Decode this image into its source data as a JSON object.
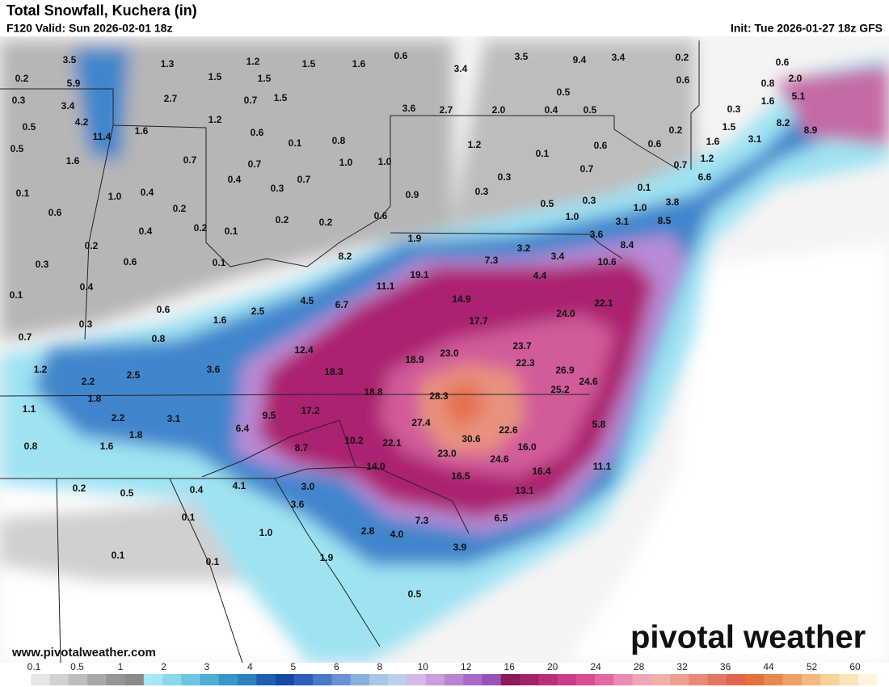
{
  "header": {
    "title": "Total Snowfall, Kuchera (in)",
    "valid": "F120 Valid: Sun 2026-02-01 18z",
    "init": "Init: Tue 2026-01-27 18z GFS"
  },
  "map_labels": [
    "3.5",
    "1.3",
    "1.2",
    "1.5",
    "1.6",
    "0.6",
    "3.5",
    "9.4",
    "3.4",
    "0.2",
    "0.6",
    "0.2",
    "5.9",
    "1.5",
    "1.5",
    "3.4",
    "0.6",
    "0.8",
    "2.0",
    "0.3",
    "3.4",
    "2.7",
    "0.7",
    "1.5",
    "3.6",
    "2.7",
    "2.0",
    "0.4",
    "0.5",
    "0.5",
    "0.3",
    "1.6",
    "5.1",
    "0.5",
    "4.2",
    "11.4",
    "1.6",
    "1.2",
    "0.6",
    "0.1",
    "0.8",
    "1.5",
    "8.2",
    "8.9",
    "0.2",
    "0.5",
    "1.6",
    "0.7",
    "0.4",
    "0.7",
    "1.0",
    "1.0",
    "1.2",
    "0.1",
    "0.6",
    "0.6",
    "1.6",
    "3.1",
    "0.1",
    "1.0",
    "0.4",
    "0.3",
    "0.7",
    "0.3",
    "0.7",
    "1.2",
    "6.6",
    "0.7",
    "0.6",
    "0.2",
    "0.9",
    "0.3",
    "0.5",
    "0.3",
    "0.1",
    "3.8",
    "1.0",
    "0.4",
    "0.2",
    "0.1",
    "0.2",
    "0.2",
    "0.6",
    "1.0",
    "3.1",
    "8.5",
    "0.2",
    "1.9",
    "3.6",
    "8.4",
    "0.3",
    "0.6",
    "0.1",
    "8.2",
    "7.3",
    "3.2",
    "3.4",
    "10.6",
    "0.4",
    "11.1",
    "19.1",
    "4.4",
    "0.1",
    "4.5",
    "6.7",
    "14.9",
    "0.6",
    "2.5",
    "24.0",
    "22.1",
    "0.3",
    "1.6",
    "17.7",
    "0.7",
    "0.8",
    "12.4",
    "23.0",
    "23.7",
    "18.3",
    "18.9",
    "22.3",
    "26.9",
    "24.6",
    "1.2",
    "2.2",
    "2.5",
    "3.6",
    "25.2",
    "28.3",
    "18.8",
    "1.8",
    "1.1",
    "2.2",
    "3.1",
    "17.2",
    "9.5",
    "27.4",
    "6.4",
    "1.8",
    "22.6",
    "5.8",
    "0.8",
    "1.6",
    "10.2",
    "22.1",
    "30.6",
    "16.0",
    "8.7",
    "23.0",
    "24.6",
    "11.1",
    "14.0",
    "16.5",
    "16.4",
    "0.2",
    "0.5",
    "0.4",
    "4.1",
    "3.0",
    "13.1",
    "0.1",
    "3.6",
    "6.5",
    "7.3",
    "2.8",
    "4.0",
    "1.0",
    "0.1",
    "0.1",
    "1.9",
    "3.9",
    "0.5"
  ],
  "watermark": "pivotal weather",
  "url": "www.pivotalweather.com",
  "colorbar": {
    "ticks": [
      0.1,
      0.5,
      1,
      2,
      3,
      4,
      5,
      6,
      8,
      10,
      12,
      16,
      20,
      24,
      28,
      32,
      36,
      44,
      52,
      60
    ],
    "colors": [
      "#ffffff",
      "#e6e6e6",
      "#d2d2d2",
      "#bdbdbd",
      "#a8a8a8",
      "#959595",
      "#8a8a8a",
      "#a8e6f5",
      "#8ad7ee",
      "#6dc3e2",
      "#4eaed6",
      "#3696c8",
      "#2a7fbc",
      "#1e5fb0",
      "#1748a6",
      "#2f5fb8",
      "#4878c6",
      "#6a92d2",
      "#8aaede",
      "#a8c6e8",
      "#bcd0ee",
      "#d8b8e8",
      "#c89ede",
      "#b884d2",
      "#a86ac6",
      "#9852ba",
      "#8a1a5a",
      "#a0246a",
      "#b8307a",
      "#cc3c8a",
      "#d94c94",
      "#e06aa2",
      "#e88cb4",
      "#eea6b8",
      "#f0b0a8",
      "#eca090",
      "#e88a7a",
      "#e47664",
      "#e06650",
      "#e27240",
      "#e88a50",
      "#f0a066",
      "#f4b880",
      "#f8d098",
      "#fce4b8",
      "#fff4dc"
    ]
  }
}
